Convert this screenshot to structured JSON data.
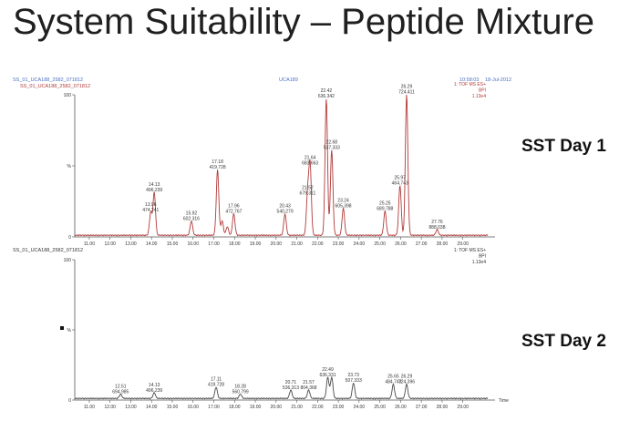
{
  "slide": {
    "title": "System Suitability – Peptide Mixture",
    "day1_label": "SST Day 1",
    "day2_label": "SST Day 2"
  },
  "header": {
    "sample_blue": "SS_01_UCA188_2582_071812",
    "sample_red": "SS_01_UCA188_2582_071812",
    "center_id": "UCA189",
    "time": "10:58:03",
    "date": "18-Jul-2012"
  },
  "chart_data": [
    {
      "type": "line",
      "name": "SST Day 1",
      "trace_label": "SS_01_UCA188_2582_071812",
      "mode": [
        "1: TOF MS ES+",
        "BPI",
        "1.13e4"
      ],
      "xlim": [
        10.3,
        30.2
      ],
      "ylim": [
        0,
        100
      ],
      "xticks": [
        "11.00",
        "12.00",
        "13.00",
        "14.00",
        "15.00",
        "16.00",
        "17.00",
        "18.00",
        "19.00",
        "20.00",
        "21.00",
        "22.00",
        "23.00",
        "24.00",
        "25.00",
        "26.00",
        "27.00",
        "28.00",
        "29.00"
      ],
      "yticks": [
        "100",
        "%",
        "0"
      ],
      "color": "#b23a3a",
      "peaks": [
        {
          "rt": 13.96,
          "height": 16,
          "label1": "13.96",
          "label2": "474.241"
        },
        {
          "rt": 14.13,
          "height": 30,
          "label1": "14.13",
          "label2": "496.239"
        },
        {
          "rt": 15.92,
          "height": 10,
          "label1": "15.92",
          "label2": "602.316"
        },
        {
          "rt": 17.18,
          "height": 46,
          "label1": "17.18",
          "label2": "419.728"
        },
        {
          "rt": 17.4,
          "height": 10
        },
        {
          "rt": 17.65,
          "height": 6
        },
        {
          "rt": 17.96,
          "height": 15,
          "label1": "17.96",
          "label2": "472.767"
        },
        {
          "rt": 20.43,
          "height": 15,
          "label1": "20.43",
          "label2": "540.279"
        },
        {
          "rt": 21.52,
          "height": 28,
          "label1": "21.52",
          "label2": "679.311"
        },
        {
          "rt": 21.64,
          "height": 49,
          "label1": "21.64",
          "label2": "683.663"
        },
        {
          "rt": 22.42,
          "height": 96,
          "label1": "22.42",
          "label2": "636.342"
        },
        {
          "rt": 22.68,
          "height": 60,
          "label1": "22.68",
          "label2": "537.333"
        },
        {
          "rt": 23.24,
          "height": 19,
          "label1": "23.24",
          "label2": "605.398"
        },
        {
          "rt": 25.25,
          "height": 17,
          "label1": "25.25",
          "label2": "689.788"
        },
        {
          "rt": 25.97,
          "height": 35,
          "label1": "25.97",
          "label2": "464.743"
        },
        {
          "rt": 26.29,
          "height": 99,
          "label1": "26.29",
          "label2": "724.411"
        },
        {
          "rt": 27.76,
          "height": 4,
          "label1": "27.76",
          "label2": "888.038"
        }
      ]
    },
    {
      "type": "line",
      "name": "SST Day 2",
      "trace_label": "SS_01_UCA188_2582_071812",
      "mode": [
        "1: TOF MS ES+",
        "BPI",
        "1.13e4"
      ],
      "xlim": [
        10.3,
        30.2
      ],
      "ylim": [
        0,
        100
      ],
      "xlabel": "Time",
      "xticks": [
        "11.00",
        "12.00",
        "13.00",
        "14.00",
        "15.00",
        "16.00",
        "17.00",
        "18.00",
        "19.00",
        "20.00",
        "21.00",
        "22.00",
        "23.00",
        "24.00",
        "25.00",
        "26.00",
        "27.00",
        "28.00",
        "29.00"
      ],
      "yticks": [
        "100",
        "%",
        "0"
      ],
      "color": "#4a4a4a",
      "peaks": [
        {
          "rt": 12.51,
          "height": 3,
          "label1": "12.51",
          "label2": "694.985"
        },
        {
          "rt": 14.13,
          "height": 4,
          "label1": "14.13",
          "label2": "496.239"
        },
        {
          "rt": 17.11,
          "height": 8,
          "label1": "17.11",
          "label2": "419.728"
        },
        {
          "rt": 18.28,
          "height": 3,
          "label1": "18.28",
          "label2": "560.799"
        },
        {
          "rt": 20.71,
          "height": 6,
          "label1": "20.71",
          "label2": "536.313"
        },
        {
          "rt": 21.57,
          "height": 6,
          "label1": "21.57",
          "label2": "804.368"
        },
        {
          "rt": 22.49,
          "height": 15,
          "label1": "22.49",
          "label2": "636.331"
        },
        {
          "rt": 22.68,
          "height": 15
        },
        {
          "rt": 23.73,
          "height": 11,
          "label1": "23.73",
          "label2": "507.333"
        },
        {
          "rt": 25.65,
          "height": 10,
          "label1": "25.65",
          "label2": "484.743"
        },
        {
          "rt": 26.29,
          "height": 10,
          "label1": "26.29",
          "label2": "724.396"
        }
      ]
    }
  ]
}
